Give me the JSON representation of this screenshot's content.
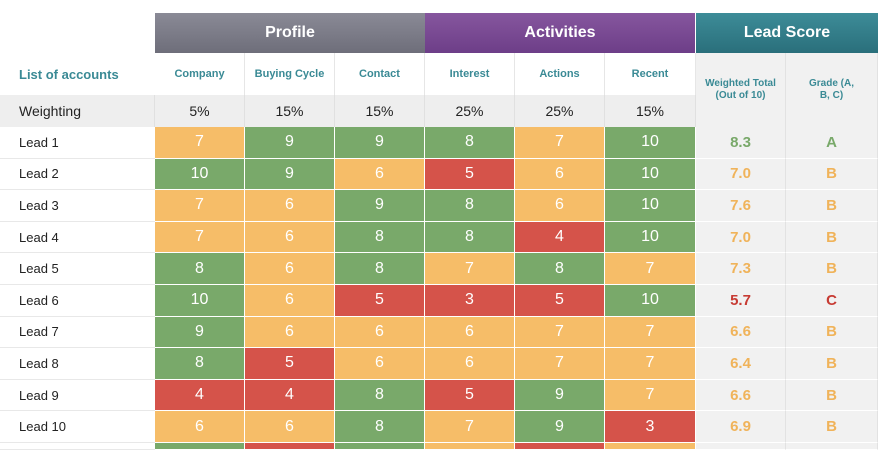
{
  "groups": {
    "profile": "Profile",
    "activities": "Activities",
    "lead_score": "Lead Score"
  },
  "headers": {
    "accounts": "List of accounts",
    "company": "Company",
    "buying_cycle": "Buying Cycle",
    "contact": "Contact",
    "interest": "Interest",
    "actions": "Actions",
    "recent": "Recent",
    "weighted_total": "Weighted Total (Out of 10)",
    "grade": "Grade (A, B, C)"
  },
  "weighting": {
    "label": "Weighting",
    "values": [
      "5%",
      "15%",
      "15%",
      "25%",
      "25%",
      "15%"
    ]
  },
  "colors": {
    "green": "#79a96a",
    "orange": "#f6bd68",
    "red": "#d5534a",
    "profile_header": "#7c7c88",
    "activities_header": "#7a4a93",
    "lead_score_header": "#34808c"
  },
  "leads": [
    {
      "name": "Lead 1",
      "values": [
        "7",
        "9",
        "9",
        "8",
        "7",
        "10"
      ],
      "colors": [
        "o",
        "g",
        "g",
        "g",
        "o",
        "g"
      ],
      "total": "8.3",
      "grade": "A"
    },
    {
      "name": "Lead 2",
      "values": [
        "10",
        "9",
        "6",
        "5",
        "6",
        "10"
      ],
      "colors": [
        "g",
        "g",
        "o",
        "r",
        "o",
        "g"
      ],
      "total": "7.0",
      "grade": "B"
    },
    {
      "name": "Lead 3",
      "values": [
        "7",
        "6",
        "9",
        "8",
        "6",
        "10"
      ],
      "colors": [
        "o",
        "o",
        "g",
        "g",
        "o",
        "g"
      ],
      "total": "7.6",
      "grade": "B"
    },
    {
      "name": "Lead 4",
      "values": [
        "7",
        "6",
        "8",
        "8",
        "4",
        "10"
      ],
      "colors": [
        "o",
        "o",
        "g",
        "g",
        "r",
        "g"
      ],
      "total": "7.0",
      "grade": "B"
    },
    {
      "name": "Lead 5",
      "values": [
        "8",
        "6",
        "8",
        "7",
        "8",
        "7"
      ],
      "colors": [
        "g",
        "o",
        "g",
        "o",
        "g",
        "o"
      ],
      "total": "7.3",
      "grade": "B"
    },
    {
      "name": "Lead 6",
      "values": [
        "10",
        "6",
        "5",
        "3",
        "5",
        "10"
      ],
      "colors": [
        "g",
        "o",
        "r",
        "r",
        "r",
        "g"
      ],
      "total": "5.7",
      "grade": "C"
    },
    {
      "name": "Lead 7",
      "values": [
        "9",
        "6",
        "6",
        "6",
        "7",
        "7"
      ],
      "colors": [
        "g",
        "o",
        "o",
        "o",
        "o",
        "o"
      ],
      "total": "6.6",
      "grade": "B"
    },
    {
      "name": "Lead 8",
      "values": [
        "8",
        "5",
        "6",
        "6",
        "7",
        "7"
      ],
      "colors": [
        "g",
        "r",
        "o",
        "o",
        "o",
        "o"
      ],
      "total": "6.4",
      "grade": "B"
    },
    {
      "name": "Lead 9",
      "values": [
        "4",
        "4",
        "8",
        "5",
        "9",
        "7"
      ],
      "colors": [
        "r",
        "r",
        "g",
        "r",
        "g",
        "o"
      ],
      "total": "6.6",
      "grade": "B"
    },
    {
      "name": "Lead 10",
      "values": [
        "6",
        "6",
        "8",
        "7",
        "9",
        "3"
      ],
      "colors": [
        "o",
        "o",
        "g",
        "o",
        "g",
        "r"
      ],
      "total": "6.9",
      "grade": "B"
    }
  ],
  "partial_row_colors": [
    "g",
    "r",
    "g",
    "o",
    "r",
    "o"
  ]
}
